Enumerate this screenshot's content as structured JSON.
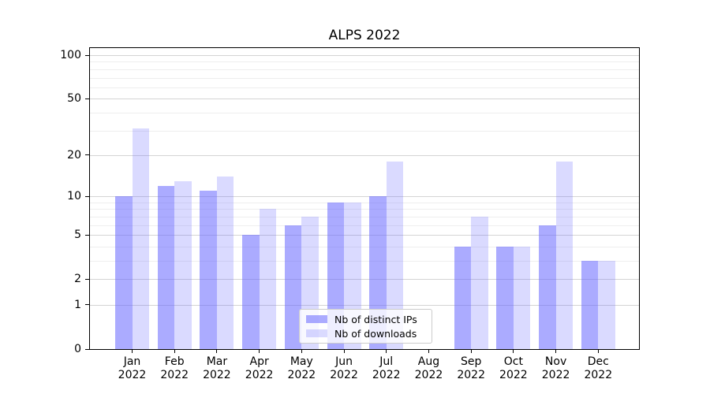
{
  "chart_data": {
    "type": "bar",
    "title": "ALPS 2022",
    "categories": [
      "Jan",
      "Feb",
      "Mar",
      "Apr",
      "May",
      "Jun",
      "Jul",
      "Aug",
      "Sep",
      "Oct",
      "Nov",
      "Dec"
    ],
    "category_year": "2022",
    "series": [
      {
        "name": "Nb of distinct IPs",
        "color": "#6666ff",
        "alpha": 0.55,
        "values": [
          10,
          12,
          11,
          5,
          6,
          9,
          10,
          0,
          4,
          4,
          6,
          3
        ]
      },
      {
        "name": "Nb of downloads",
        "color": "#6666ff",
        "alpha": 0.24,
        "values": [
          31,
          13,
          14,
          8,
          7,
          9,
          18,
          0,
          7,
          4,
          18,
          3
        ]
      }
    ],
    "y_scale": "log1p",
    "y_major_ticks": [
      100,
      50,
      20,
      10,
      5,
      2,
      1,
      0
    ],
    "y_minor_gridlines": [
      3,
      4,
      6,
      7,
      8,
      9,
      30,
      40,
      60,
      70,
      80,
      90
    ],
    "ylim": [
      0,
      112
    ],
    "xlabel": "",
    "ylabel": "",
    "grid": true,
    "legend": {
      "position": "lower-center-inside"
    },
    "colors": {
      "major_grid": "#d4d4d4",
      "minor_grid": "#eeeeee",
      "spine": "#000000",
      "text": "#000000",
      "legend_border": "#cccccc"
    }
  }
}
